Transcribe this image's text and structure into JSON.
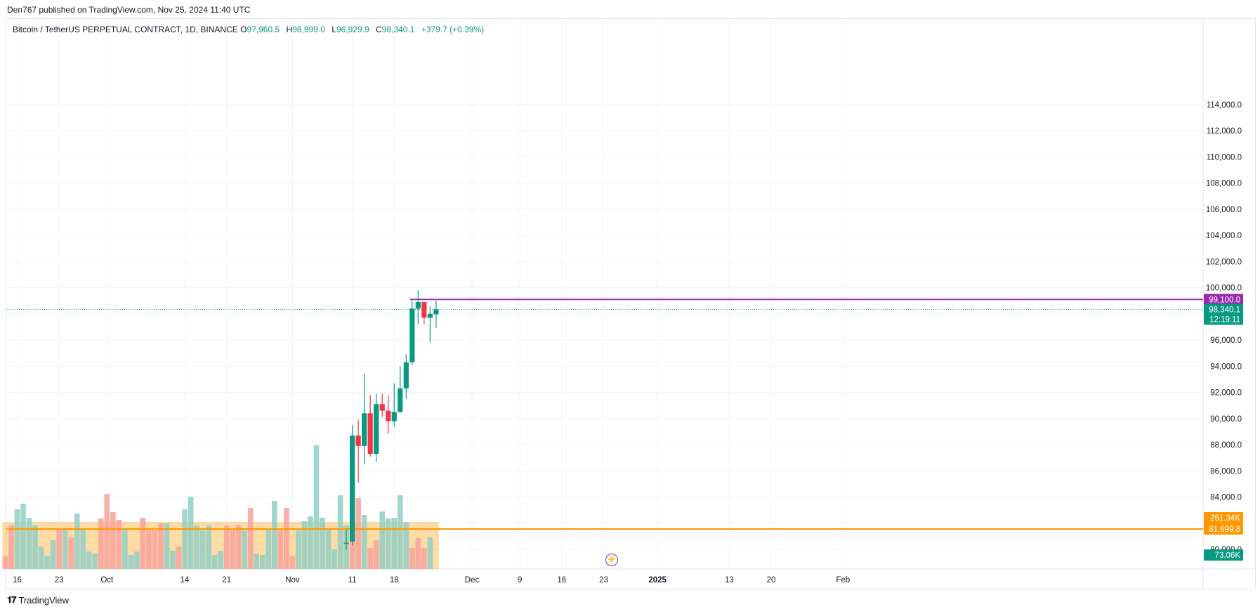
{
  "header": {
    "published_by": "Den767 published on TradingView.com, Nov 25, 2024 11:40 UTC"
  },
  "legend": {
    "symbol": "Bitcoin / TetherUS PERPETUAL CONTRACT, 1D, BINANCE",
    "open_label": "O",
    "open": "97,960.5",
    "high_label": "H",
    "high": "98,999.0",
    "low_label": "L",
    "low": "96,929.9",
    "close_label": "C",
    "close": "98,340.1",
    "change": "+379.7 (+0.39%)"
  },
  "footer": {
    "brand": "TradingView",
    "logo_icon": "tradingview-logo-icon"
  },
  "colors": {
    "up": "#089981",
    "down": "#f23645",
    "up_volume": "#8fcfc6",
    "down_volume": "#f7a29c",
    "volume_ma": "#ff9800",
    "resistance": "#9c27b0",
    "grid": "#f0f3fa",
    "axis_text": "#131722"
  },
  "chart_data": {
    "type": "candlestick",
    "symbol": "BTCUSDT.P",
    "interval": "1D",
    "y_axis": {
      "min": 79000,
      "max": 115000,
      "ticks": [
        80000,
        82000,
        84000,
        86000,
        88000,
        90000,
        92000,
        94000,
        96000,
        98000,
        100000,
        102000,
        104000,
        106000,
        108000,
        110000,
        112000,
        114000
      ],
      "tick_labels": [
        "80,000.0",
        "82,000.0",
        "84,000.0",
        "86,000.0",
        "88,000.0",
        "90,000.0",
        "92,000.0",
        "94,000.0",
        "96,000.0",
        "98,000.0",
        "100,000.0",
        "102,000.0",
        "104,000.0",
        "106,000.0",
        "108,000.0",
        "110,000.0",
        "112,000.0",
        "114,000.0"
      ]
    },
    "x_axis": {
      "first_date": "2024-09-15",
      "last_date": "2025-02-03",
      "labels": [
        {
          "date": "2024-09-16",
          "text": "16",
          "bold": false
        },
        {
          "date": "2024-09-23",
          "text": "23",
          "bold": false
        },
        {
          "date": "2024-10-01",
          "text": "Oct",
          "bold": false
        },
        {
          "date": "2024-10-14",
          "text": "14",
          "bold": false
        },
        {
          "date": "2024-10-21",
          "text": "21",
          "bold": false
        },
        {
          "date": "2024-11-01",
          "text": "Nov",
          "bold": false
        },
        {
          "date": "2024-11-11",
          "text": "11",
          "bold": false
        },
        {
          "date": "2024-11-18",
          "text": "18",
          "bold": false
        },
        {
          "date": "2024-12-01",
          "text": "Dec",
          "bold": false
        },
        {
          "date": "2024-12-09",
          "text": "9",
          "bold": false
        },
        {
          "date": "2024-12-16",
          "text": "16",
          "bold": false
        },
        {
          "date": "2024-12-23",
          "text": "23",
          "bold": false
        },
        {
          "date": "2025-01-01",
          "text": "2025",
          "bold": true
        },
        {
          "date": "2025-01-13",
          "text": "13",
          "bold": false
        },
        {
          "date": "2025-01-20",
          "text": "20",
          "bold": false
        },
        {
          "date": "2025-02-01",
          "text": "Feb",
          "bold": false
        }
      ]
    },
    "candles": [
      {
        "date": "2024-11-10",
        "open": 80500,
        "high": 81500,
        "low": 80000,
        "close": 80500
      },
      {
        "date": "2024-11-11",
        "open": 80600,
        "high": 89500,
        "low": 80300,
        "close": 88700
      },
      {
        "date": "2024-11-12",
        "open": 88700,
        "high": 89900,
        "low": 85100,
        "close": 87900
      },
      {
        "date": "2024-11-13",
        "open": 87900,
        "high": 93400,
        "low": 86500,
        "close": 90400
      },
      {
        "date": "2024-11-14",
        "open": 90400,
        "high": 91800,
        "low": 87100,
        "close": 87300
      },
      {
        "date": "2024-11-15",
        "open": 87300,
        "high": 91900,
        "low": 86700,
        "close": 91100
      },
      {
        "date": "2024-11-16",
        "open": 91100,
        "high": 91900,
        "low": 90100,
        "close": 90600
      },
      {
        "date": "2024-11-17",
        "open": 90600,
        "high": 91800,
        "low": 88800,
        "close": 89800
      },
      {
        "date": "2024-11-18",
        "open": 89800,
        "high": 92700,
        "low": 89400,
        "close": 90500
      },
      {
        "date": "2024-11-19",
        "open": 90500,
        "high": 94000,
        "low": 90400,
        "close": 92300
      },
      {
        "date": "2024-11-20",
        "open": 92300,
        "high": 94900,
        "low": 91500,
        "close": 94300
      },
      {
        "date": "2024-11-21",
        "open": 94300,
        "high": 99000,
        "low": 94100,
        "close": 98400
      },
      {
        "date": "2024-11-22",
        "open": 98400,
        "high": 99800,
        "low": 97200,
        "close": 98900
      },
      {
        "date": "2024-11-23",
        "open": 98900,
        "high": 98900,
        "low": 97200,
        "close": 97700
      },
      {
        "date": "2024-11-24",
        "open": 97700,
        "high": 98600,
        "low": 95800,
        "close": 98000
      },
      {
        "date": "2024-11-25",
        "open": 97960.5,
        "high": 98999.0,
        "low": 96929.9,
        "close": 98340.1
      }
    ],
    "volume_bars": [
      {
        "date": "2024-09-14",
        "level": 0.18,
        "up": false
      },
      {
        "date": "2024-09-15",
        "level": 0.62,
        "up": false
      },
      {
        "date": "2024-09-16",
        "level": 0.85,
        "up": true
      },
      {
        "date": "2024-09-17",
        "level": 0.93,
        "up": true
      },
      {
        "date": "2024-09-18",
        "level": 0.73,
        "up": true
      },
      {
        "date": "2024-09-19",
        "level": 0.62,
        "up": true
      },
      {
        "date": "2024-09-20",
        "level": 0.32,
        "up": true
      },
      {
        "date": "2024-09-21",
        "level": 0.19,
        "up": true
      },
      {
        "date": "2024-09-22",
        "level": 0.41,
        "up": true
      },
      {
        "date": "2024-09-23",
        "level": 0.57,
        "up": false
      },
      {
        "date": "2024-09-24",
        "level": 0.58,
        "up": true
      },
      {
        "date": "2024-09-25",
        "level": 0.45,
        "up": false
      },
      {
        "date": "2024-09-26",
        "level": 0.79,
        "up": true
      },
      {
        "date": "2024-09-27",
        "level": 0.56,
        "up": true
      },
      {
        "date": "2024-09-28",
        "level": 0.25,
        "up": true
      },
      {
        "date": "2024-09-29",
        "level": 0.22,
        "up": true
      },
      {
        "date": "2024-09-30",
        "level": 0.72,
        "up": false
      },
      {
        "date": "2024-10-01",
        "level": 1.07,
        "up": false
      },
      {
        "date": "2024-10-02",
        "level": 0.81,
        "up": false
      },
      {
        "date": "2024-10-03",
        "level": 0.7,
        "up": false
      },
      {
        "date": "2024-10-04",
        "level": 0.56,
        "up": true
      },
      {
        "date": "2024-10-05",
        "level": 0.2,
        "up": true
      },
      {
        "date": "2024-10-06",
        "level": 0.25,
        "up": true
      },
      {
        "date": "2024-10-07",
        "level": 0.73,
        "up": false
      },
      {
        "date": "2024-10-08",
        "level": 0.55,
        "up": false
      },
      {
        "date": "2024-10-09",
        "level": 0.55,
        "up": false
      },
      {
        "date": "2024-10-10",
        "level": 0.65,
        "up": false
      },
      {
        "date": "2024-10-11",
        "level": 0.65,
        "up": true
      },
      {
        "date": "2024-10-12",
        "level": 0.26,
        "up": true
      },
      {
        "date": "2024-10-13",
        "level": 0.32,
        "up": false
      },
      {
        "date": "2024-10-14",
        "level": 0.85,
        "up": true
      },
      {
        "date": "2024-10-15",
        "level": 1.03,
        "up": true
      },
      {
        "date": "2024-10-16",
        "level": 0.62,
        "up": true
      },
      {
        "date": "2024-10-17",
        "level": 0.55,
        "up": true
      },
      {
        "date": "2024-10-18",
        "level": 0.62,
        "up": true
      },
      {
        "date": "2024-10-19",
        "level": 0.2,
        "up": true
      },
      {
        "date": "2024-10-20",
        "level": 0.26,
        "up": true
      },
      {
        "date": "2024-10-21",
        "level": 0.62,
        "up": false
      },
      {
        "date": "2024-10-22",
        "level": 0.55,
        "up": false
      },
      {
        "date": "2024-10-23",
        "level": 0.62,
        "up": false
      },
      {
        "date": "2024-10-24",
        "level": 0.55,
        "up": true
      },
      {
        "date": "2024-10-25",
        "level": 0.87,
        "up": false
      },
      {
        "date": "2024-10-26",
        "level": 0.22,
        "up": true
      },
      {
        "date": "2024-10-27",
        "level": 0.2,
        "up": true
      },
      {
        "date": "2024-10-28",
        "level": 0.57,
        "up": true
      },
      {
        "date": "2024-10-29",
        "level": 0.97,
        "up": true
      },
      {
        "date": "2024-10-30",
        "level": 0.55,
        "up": false
      },
      {
        "date": "2024-10-31",
        "level": 0.87,
        "up": false
      },
      {
        "date": "2024-11-01",
        "level": 0.18,
        "up": false
      },
      {
        "date": "2024-11-02",
        "level": 0.55,
        "up": true
      },
      {
        "date": "2024-11-03",
        "level": 0.68,
        "up": true
      },
      {
        "date": "2024-11-04",
        "level": 0.75,
        "up": true
      },
      {
        "date": "2024-11-05",
        "level": 1.76,
        "up": true
      },
      {
        "date": "2024-11-06",
        "level": 0.73,
        "up": true
      },
      {
        "date": "2024-11-07",
        "level": 0.57,
        "up": true
      },
      {
        "date": "2024-11-08",
        "level": 0.28,
        "up": true
      },
      {
        "date": "2024-11-09",
        "level": 1.05,
        "up": true
      },
      {
        "date": "2024-11-10",
        "level": 0.62,
        "up": true
      },
      {
        "date": "2024-11-11",
        "level": 1.56,
        "up": false
      },
      {
        "date": "2024-11-12",
        "level": 1.01,
        "up": false
      },
      {
        "date": "2024-11-13",
        "level": 0.77,
        "up": true
      },
      {
        "date": "2024-11-14",
        "level": 0.3,
        "up": false
      },
      {
        "date": "2024-11-15",
        "level": 0.41,
        "up": false
      },
      {
        "date": "2024-11-16",
        "level": 0.82,
        "up": true
      },
      {
        "date": "2024-11-17",
        "level": 0.72,
        "up": true
      },
      {
        "date": "2024-11-18",
        "level": 0.73,
        "up": true
      },
      {
        "date": "2024-11-19",
        "level": 1.05,
        "up": true
      },
      {
        "date": "2024-11-20",
        "level": 0.67,
        "up": true
      },
      {
        "date": "2024-11-21",
        "level": 0.3,
        "up": false
      },
      {
        "date": "2024-11-22",
        "level": 0.44,
        "up": false
      }
    ],
    "volume_ma_band_level": 0.67,
    "indicators": {
      "resistance_line": {
        "value": 99100.0,
        "label": "99,100.0",
        "start_date": "2024-11-21"
      },
      "volume_ma_line": {
        "value": 81699.8,
        "label": "81,699.8"
      }
    },
    "price_labels": {
      "last_price": "98,340.1",
      "countdown": "12:19:11",
      "volume_ma_value": "251.34K",
      "volume_value": "73.06K"
    }
  }
}
